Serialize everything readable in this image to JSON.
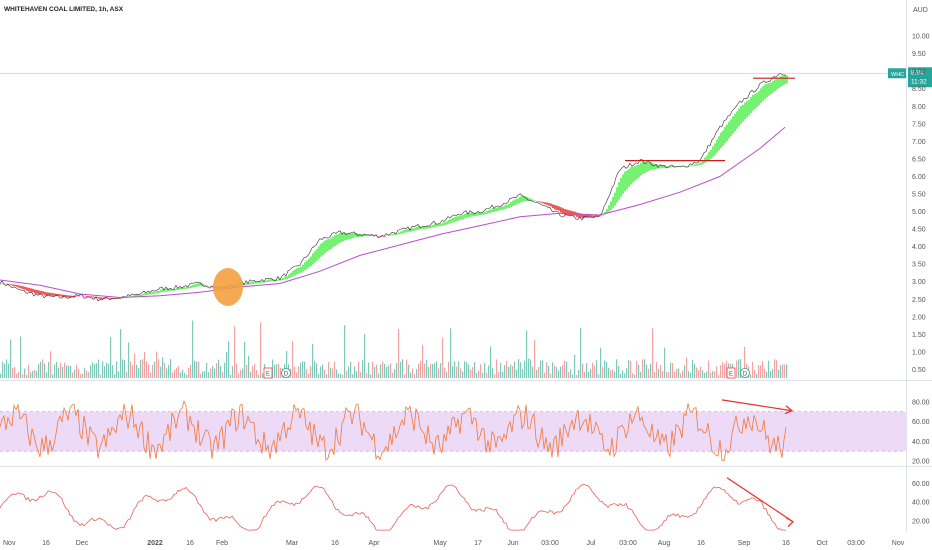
{
  "chart_data": [
    {
      "type": "line",
      "title": "WHITEHAVEN COAL LIMITED, 1h, ASX",
      "currency": "AUD",
      "ticker_label": "WHC",
      "last_price": "8.94",
      "countdown": "11:32",
      "ylim": [
        0.2,
        10.6
      ],
      "y_ticks": [
        "10.00",
        "9.50",
        "9.00",
        "8.50",
        "8.00",
        "7.50",
        "7.00",
        "6.50",
        "6.00",
        "5.50",
        "5.00",
        "4.50",
        "4.00",
        "3.50",
        "3.00",
        "2.50",
        "2.00",
        "1.50",
        "1.00",
        "0.50"
      ],
      "x_ticks": [
        "Nov",
        "16",
        "Dec",
        "2022",
        "16",
        "Feb",
        "Mar",
        "16",
        "Apr",
        "May",
        "17",
        "Jun",
        "03:00",
        "Jul",
        "03:00",
        "Aug",
        "16",
        "Sep",
        "16",
        "Oct",
        "03:00",
        "Nov"
      ],
      "series": [
        {
          "role": "price",
          "color": "#7a2a6a",
          "x": [
            0,
            20,
            40,
            60,
            80,
            100,
            120,
            140,
            160,
            180,
            200,
            220,
            240,
            260,
            280,
            300,
            320,
            340,
            360,
            380,
            400,
            420,
            440,
            460,
            480,
            500,
            520,
            540,
            560,
            580,
            600,
            620,
            640,
            660,
            680,
            700,
            720,
            740,
            760,
            780
          ],
          "values": [
            3.0,
            2.75,
            2.6,
            2.55,
            2.6,
            2.5,
            2.55,
            2.65,
            2.8,
            2.85,
            2.95,
            2.8,
            2.95,
            3.05,
            3.1,
            3.5,
            4.2,
            4.4,
            4.35,
            4.3,
            4.45,
            4.6,
            4.7,
            4.95,
            5.0,
            5.2,
            5.45,
            5.2,
            4.9,
            4.8,
            4.85,
            6.2,
            6.45,
            6.3,
            6.25,
            6.45,
            7.4,
            8.1,
            8.6,
            8.94
          ]
        },
        {
          "role": "long-ma",
          "color": "#b84fd0",
          "x": [
            0,
            40,
            80,
            120,
            160,
            200,
            240,
            280,
            320,
            360,
            400,
            440,
            480,
            520,
            560,
            600,
            640,
            680,
            720,
            760,
            785
          ],
          "values": [
            3.05,
            2.9,
            2.65,
            2.55,
            2.6,
            2.7,
            2.85,
            2.95,
            3.3,
            3.75,
            4.05,
            4.35,
            4.6,
            4.85,
            4.95,
            4.9,
            5.2,
            5.55,
            6.0,
            6.8,
            7.4
          ]
        }
      ],
      "resistance_lines": [
        {
          "x": [
            625,
            725
          ],
          "y": 6.45,
          "color": "#d11a1a"
        },
        {
          "x": [
            753,
            795
          ],
          "y": 8.8,
          "color": "#d11a1a"
        }
      ],
      "circle_marker": {
        "x": 228,
        "y": 2.85,
        "color": "#f5a040"
      },
      "event_markers": [
        {
          "label": "E",
          "x": 268
        },
        {
          "label": "D",
          "x": 286
        },
        {
          "label": "E",
          "x": 731
        },
        {
          "label": "D",
          "x": 745
        }
      ]
    },
    {
      "type": "line",
      "role": "RSI",
      "color": "#f0793a",
      "band_color": "#ecdaf7",
      "ylim": [
        15,
        92
      ],
      "band": [
        30,
        70
      ],
      "y_ticks": [
        "80.00",
        "60.00",
        "40.00",
        "20.00"
      ],
      "divergence_arrow": {
        "x": [
          722,
          792
        ],
        "y": [
          82,
          71
        ],
        "color": "#e53030"
      }
    },
    {
      "type": "line",
      "role": "oscillator",
      "color": "#e8605a",
      "ylim": [
        8,
        70
      ],
      "y_ticks": [
        "60.00",
        "40.00",
        "20.00"
      ],
      "divergence_arrow": {
        "x": [
          727,
          793
        ],
        "y": [
          66,
          19
        ],
        "color": "#e53030"
      }
    }
  ]
}
